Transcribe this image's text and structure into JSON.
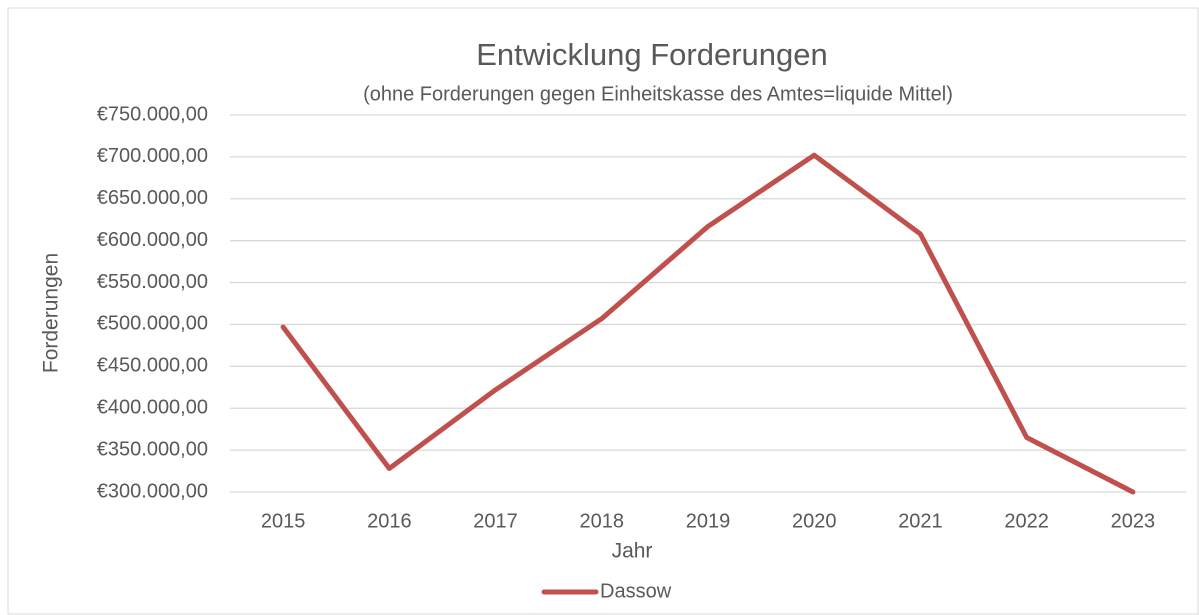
{
  "chart_data": {
    "type": "line",
    "title": "Entwicklung Forderungen",
    "subtitle": "(ohne Forderungen gegen Einheitskasse des Amtes=liquide Mittel)",
    "x_label": "Jahr",
    "y_label": "Forderungen",
    "categories": [
      "2015",
      "2016",
      "2017",
      "2018",
      "2019",
      "2020",
      "2021",
      "2022",
      "2023"
    ],
    "series": [
      {
        "name": "Dassow",
        "color": "#c0504d",
        "values": [
          497000,
          328000,
          422000,
          507000,
          617000,
          702000,
          608000,
          365000,
          300000
        ]
      }
    ],
    "ylim": [
      300000,
      750000
    ],
    "yticks": [
      {
        "value": 300000,
        "label": "€300.000,00"
      },
      {
        "value": 350000,
        "label": "€350.000,00"
      },
      {
        "value": 400000,
        "label": "€400.000,00"
      },
      {
        "value": 450000,
        "label": "€450.000,00"
      },
      {
        "value": 500000,
        "label": "€500.000,00"
      },
      {
        "value": 550000,
        "label": "€550.000,00"
      },
      {
        "value": 600000,
        "label": "€600.000,00"
      },
      {
        "value": 650000,
        "label": "€650.000,00"
      },
      {
        "value": 700000,
        "label": "€700.000,00"
      },
      {
        "value": 750000,
        "label": "€750.000,00"
      }
    ],
    "grid": true,
    "legend": "bottom"
  }
}
